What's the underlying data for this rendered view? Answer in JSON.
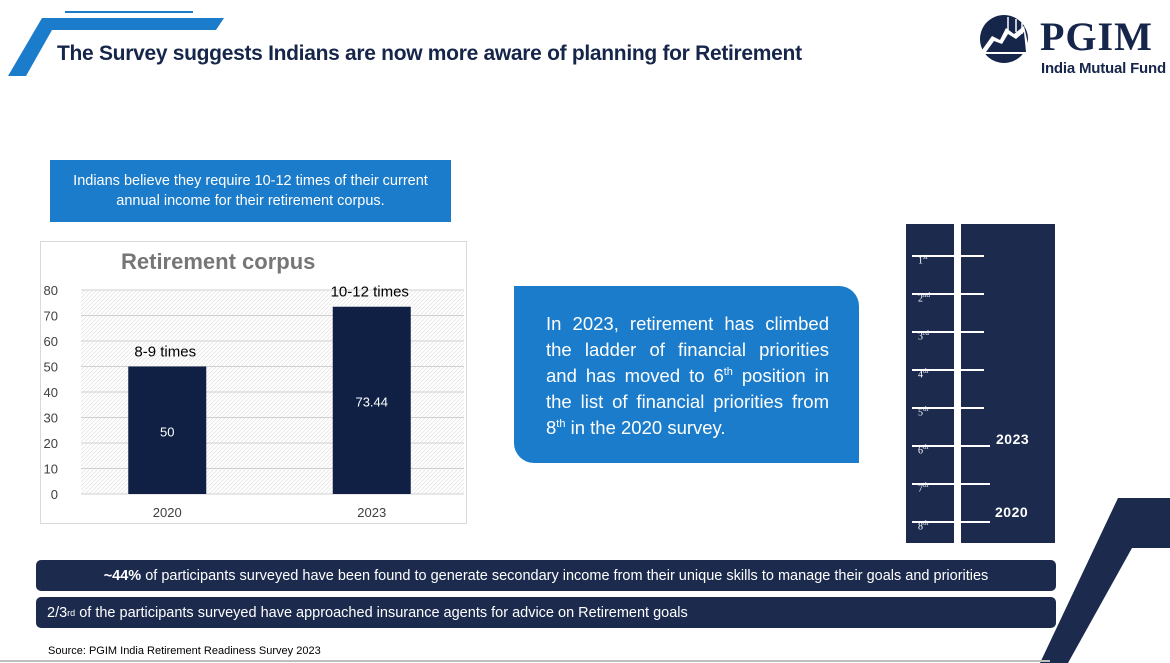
{
  "header": {
    "title": "The Survey suggests Indians are now more aware of planning for Retirement",
    "brand_name": "PGIM",
    "brand_subtitle": "India Mutual Fund"
  },
  "info_box": {
    "text": "Indians believe they require 10-12 times of their current annual income for their retirement corpus."
  },
  "chart_data": {
    "type": "bar",
    "title": "Retirement corpus",
    "categories": [
      "2020",
      "2023"
    ],
    "values": [
      50,
      73.44
    ],
    "data_labels": [
      "50",
      "73.44"
    ],
    "annotations": [
      "8-9 times",
      "10-12 times"
    ],
    "yticks": [
      "0",
      "10",
      "20",
      "30",
      "40",
      "50",
      "60",
      "70",
      "80"
    ],
    "ylim": [
      0,
      80
    ],
    "xlabel": "",
    "ylabel": "",
    "grid": true,
    "legend": "none",
    "bar_color": "#0f2044"
  },
  "callout": {
    "part1": "In 2023, retirement has climbed the ladder of financial priorities and has moved to 6",
    "sup1": "th",
    "part2": " position in the list of financial priorities from 8",
    "sup2": "th",
    "part3": " in the 2020 survey."
  },
  "ladder": {
    "rungs": [
      {
        "num": "1",
        "sup": "st"
      },
      {
        "num": "2",
        "sup": "nd"
      },
      {
        "num": "3",
        "sup": "rd"
      },
      {
        "num": "4",
        "sup": "th"
      },
      {
        "num": "5",
        "sup": "th"
      },
      {
        "num": "6",
        "sup": "th"
      },
      {
        "num": "7",
        "sup": "th"
      },
      {
        "num": "8",
        "sup": "th"
      }
    ],
    "label_2023": "2023",
    "label_2020": "2020"
  },
  "strips": {
    "strip1_bold": "~44%",
    "strip1_rest": " of participants surveyed have been found to generate secondary income from their unique skills to manage their goals and priorities",
    "strip2_num": "2/3",
    "strip2_sup": "rd",
    "strip2_rest": " of the participants surveyed have approached insurance agents for advice on Retirement goals"
  },
  "footer": {
    "source": "Source: PGIM India Retirement Readiness Survey 2023"
  },
  "colors": {
    "navy": "#1b2a4d",
    "blue": "#1a7ccb",
    "bar": "#0f2044"
  }
}
